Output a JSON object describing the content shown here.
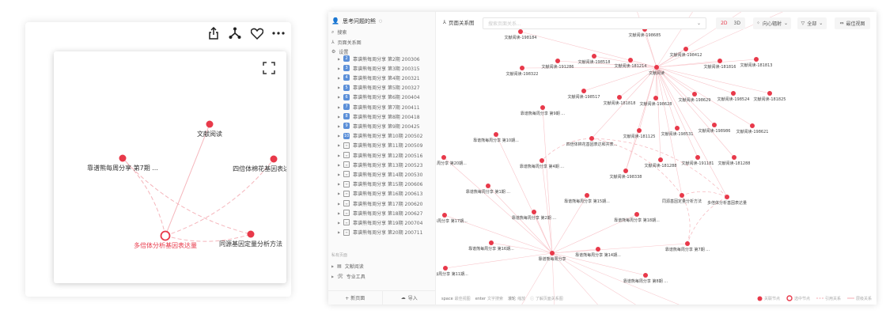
{
  "left_panel": {
    "icons": [
      "share-icon",
      "graph-icon",
      "heart-icon",
      "more-icon"
    ],
    "expand_icon": "fullscreen-icon",
    "graph": {
      "nodes": [
        "文献阅读",
        "靠谱熊每周分享 第7期 ...",
        "四倍体棉花基因表达和共表...",
        "同源基因定量分析方法",
        "多倍体分析基因表达量"
      ],
      "selected": 4,
      "edges": [
        [
          4,
          0,
          "hierarchy"
        ],
        [
          4,
          1,
          "reference"
        ],
        [
          4,
          2,
          "reference"
        ],
        [
          4,
          3,
          "reference"
        ],
        [
          1,
          3,
          "reference"
        ]
      ]
    }
  },
  "app": {
    "user": "思考问题的熊",
    "nav": {
      "search": "搜索",
      "graph": "页面关系图",
      "settings": "设置"
    },
    "pages": [
      {
        "num": "2",
        "label": "靠谱熊每周分享 第2期 200306"
      },
      {
        "num": "3",
        "label": "靠谱熊每周分享 第3期 200315"
      },
      {
        "num": "4",
        "label": "靠谱熊每周分享 第4期 200321"
      },
      {
        "num": "5",
        "label": "靠谱熊每周分享 第5期 200327"
      },
      {
        "num": "6",
        "label": "靠谱熊每周分享 第6期 200404"
      },
      {
        "num": "7",
        "label": "靠谱熊每周分享 第7期 200411"
      },
      {
        "num": "8",
        "label": "靠谱熊每周分享 第8期 200418"
      },
      {
        "num": "9",
        "label": "靠谱熊每周分享 第9期 200425"
      },
      {
        "num": "10",
        "label": "靠谱熊每周分享 第10期 200502"
      },
      {
        "num": "",
        "label": "靠谱熊每周分享 第11期 200509"
      },
      {
        "num": "",
        "label": "靠谱熊每周分享 第12期 200516"
      },
      {
        "num": "",
        "label": "靠谱熊每周分享 第13期 200523"
      },
      {
        "num": "",
        "label": "靠谱熊每周分享 第14期 200530"
      },
      {
        "num": "",
        "label": "靠谱熊每周分享 第15期 200606"
      },
      {
        "num": "",
        "label": "靠谱熊每周分享 第16期 200613"
      },
      {
        "num": "",
        "label": "靠谱熊每周分享 第17期 200620"
      },
      {
        "num": "",
        "label": "靠谱熊每周分享 第18期 200627"
      },
      {
        "num": "",
        "label": "靠谱熊每周分享 第19期 200704"
      },
      {
        "num": "",
        "label": "靠谱熊每周分享 第20期 200711"
      }
    ],
    "private_header": "私有页面",
    "private_pages": [
      "文献阅读",
      "专业工具"
    ],
    "new_page": "+ 新页面",
    "import": "导入",
    "toolbar": {
      "title": "页面关系图",
      "search_placeholder": "搜索页面关系...",
      "mode_2d": "2D",
      "mode_3d": "3D",
      "layout": "向心辐射",
      "filter": "全部",
      "best_view": "最佳视图"
    },
    "footer": {
      "hints": [
        {
          "key": "space",
          "text": "最佳视图"
        },
        {
          "key": "enter",
          "text": "文字搜索"
        },
        {
          "key": "滚轮",
          "text": "缩放"
        }
      ],
      "help": "了解页面关系图",
      "legend": [
        "关联节点",
        "选中节点",
        "引用关系",
        "层级关系"
      ]
    },
    "accent": "#e8394a",
    "graph": {
      "nodes": [
        "文献阅读",
        "文献阅读-198184",
        "文献阅读-198685",
        "文献阅读-191286",
        "文献阅读-198518",
        "文献阅读-181214",
        "文献阅读-198322",
        "文献阅读-198412",
        "文献阅读-181816",
        "文献阅读-181813",
        "文献阅读-198517",
        "文献阅读-181818",
        "文献阅读-198628",
        "文献阅读-198629",
        "文献阅读-198524",
        "文献阅读-181825",
        "文献阅读-181125",
        "文献阅读-198531",
        "文献阅读-198986",
        "文献阅读-198621",
        "文献阅读-198338",
        "文献阅读-181288",
        "文献阅读-191181",
        "文献阅读-181288",
        "靠谱熊每周分享",
        "靠谱熊每周分享 第9期 ...",
        "靠谱熊每周分享 第10期...",
        "靠谱熊每周分享 第20期...",
        "靠谱熊每周分享 第4期 ...",
        "靠谱熊每周分享 第1期 ...",
        "靠谱熊每周分享 第15期...",
        "靠谱熊每周分享 第17期...",
        "靠谱熊每周分享 第2期 ...",
        "靠谱熊每周分享 第18期...",
        "靠谱熊每周分享 第16期...",
        "靠谱熊每周分享 第14期...",
        "靠谱熊每周分享 第7期 ...",
        "靠谱熊每周分享 第11期...",
        "靠谱熊每周分享 第8期 ...",
        "四倍体棉花基因表达和共表...",
        "同源基因定量分析方法",
        "多倍体分析基因表达量"
      ],
      "hierarchy_edges": [
        [
          0,
          1
        ],
        [
          0,
          2
        ],
        [
          0,
          3
        ],
        [
          0,
          4
        ],
        [
          0,
          5
        ],
        [
          0,
          6
        ],
        [
          0,
          7
        ],
        [
          0,
          8
        ],
        [
          0,
          9
        ],
        [
          0,
          10
        ],
        [
          0,
          11
        ],
        [
          0,
          12
        ],
        [
          0,
          13
        ],
        [
          0,
          14
        ],
        [
          0,
          15
        ],
        [
          0,
          16
        ],
        [
          0,
          17
        ],
        [
          0,
          18
        ],
        [
          0,
          19
        ],
        [
          0,
          20
        ],
        [
          0,
          21
        ],
        [
          0,
          22
        ],
        [
          0,
          23
        ],
        [
          16,
          20
        ],
        [
          24,
          25
        ],
        [
          24,
          26
        ],
        [
          24,
          27
        ],
        [
          24,
          28
        ],
        [
          24,
          29
        ],
        [
          24,
          30
        ],
        [
          24,
          31
        ],
        [
          24,
          32
        ],
        [
          24,
          33
        ],
        [
          24,
          34
        ],
        [
          24,
          35
        ],
        [
          24,
          36
        ],
        [
          24,
          37
        ],
        [
          24,
          38
        ],
        [
          0,
          39
        ],
        [
          0,
          40
        ],
        [
          0,
          41
        ]
      ],
      "reference_edges": [
        [
          41,
          39
        ],
        [
          41,
          40
        ],
        [
          41,
          36
        ],
        [
          40,
          39
        ],
        [
          36,
          40
        ],
        [
          39,
          28
        ]
      ]
    }
  }
}
